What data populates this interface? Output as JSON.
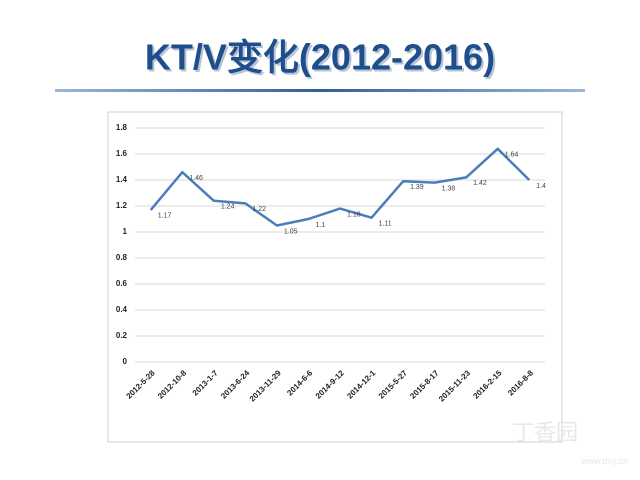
{
  "header": {
    "title": "KT/V变化(2012-2016)"
  },
  "chart_data": {
    "type": "line",
    "categories": [
      "2012-5-28",
      "2012-10-8",
      "2013-1-7",
      "2013-6-24",
      "2013-11-29",
      "2014-6-6",
      "2014-9-12",
      "2014-12-1",
      "2015-5-27",
      "2015-8-17",
      "2015-11-23",
      "2016-2-15",
      "2016-8-8"
    ],
    "values": [
      1.17,
      1.46,
      1.24,
      1.22,
      1.05,
      1.1,
      1.18,
      1.11,
      1.39,
      1.38,
      1.42,
      1.64,
      1.4
    ],
    "color": "#4a7ebb",
    "ylim": [
      0,
      1.8
    ],
    "yticks": [
      0,
      0.2,
      0.4,
      0.6,
      0.8,
      1,
      1.2,
      1.4,
      1.6,
      1.8
    ],
    "grid": true
  },
  "watermark": {
    "brand": "丁香园",
    "url": "www.dxy.cn"
  }
}
